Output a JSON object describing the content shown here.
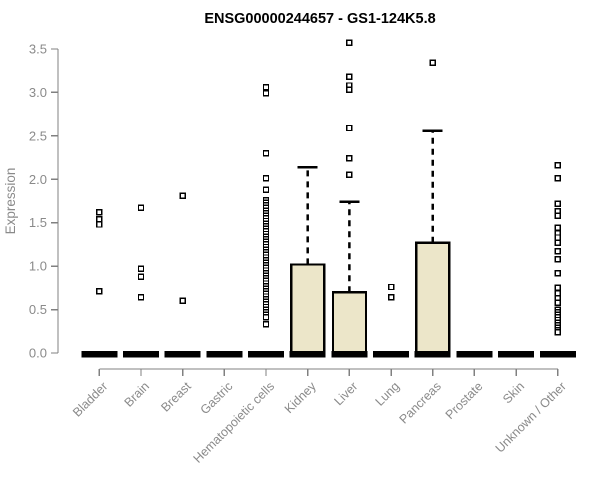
{
  "chart_data": {
    "type": "boxplot",
    "title": "ENSG00000244657 - GS1-124K5.8",
    "ylabel": "Expression",
    "xlabel": "",
    "ylim": [
      0.0,
      3.5
    ],
    "ytick_labels": [
      "0.0",
      "0.5",
      "1.0",
      "1.5",
      "2.0",
      "2.5",
      "3.0",
      "3.5"
    ],
    "ytick_values": [
      0.0,
      0.5,
      1.0,
      1.5,
      2.0,
      2.5,
      3.0,
      3.5
    ],
    "grid": "off",
    "legend": "none",
    "categories": [
      "Bladder",
      "Brain",
      "Breast",
      "Gastric",
      "Hematopoietic cells",
      "Kidney",
      "Liver",
      "Lung",
      "Pancreas",
      "Prostate",
      "Skin",
      "Unknown / Other"
    ],
    "groups": [
      {
        "name": "Bladder",
        "median": 0,
        "q1": 0,
        "q3": 0,
        "whisker_high": 0,
        "points": [
          1.62,
          1.54,
          1.48,
          0.71
        ]
      },
      {
        "name": "Brain",
        "median": 0,
        "q1": 0,
        "q3": 0,
        "whisker_high": 0,
        "points": [
          1.67,
          0.97,
          0.88,
          0.64
        ]
      },
      {
        "name": "Breast",
        "median": 0,
        "q1": 0,
        "q3": 0,
        "whisker_high": 0,
        "points": [
          1.81,
          0.6
        ]
      },
      {
        "name": "Gastric",
        "median": 0,
        "q1": 0,
        "q3": 0,
        "whisker_high": 0,
        "points": []
      },
      {
        "name": "Hematopoietic cells",
        "median": 0,
        "q1": 0,
        "q3": 0,
        "whisker_high": 0,
        "points": [
          3.06,
          2.99,
          2.3,
          2.01,
          1.88,
          1.76,
          1.73,
          1.7,
          1.67,
          1.64,
          1.61,
          1.58,
          1.55,
          1.52,
          1.49,
          1.46,
          1.43,
          1.4,
          1.37,
          1.34,
          1.31,
          1.28,
          1.25,
          1.22,
          1.19,
          1.16,
          1.13,
          1.1,
          1.07,
          1.04,
          1.01,
          0.98,
          0.95,
          0.92,
          0.89,
          0.86,
          0.83,
          0.8,
          0.77,
          0.74,
          0.71,
          0.68,
          0.65,
          0.62,
          0.59,
          0.56,
          0.53,
          0.5,
          0.47,
          0.44,
          0.41,
          0.33
        ]
      },
      {
        "name": "Kidney",
        "median": 0,
        "q1": 0,
        "q3": 1.02,
        "whisker_high": 2.14,
        "points": []
      },
      {
        "name": "Liver",
        "median": 0,
        "q1": 0,
        "q3": 0.7,
        "whisker_high": 1.74,
        "points": [
          3.57,
          3.18,
          3.08,
          3.03,
          2.59,
          2.24,
          2.05
        ]
      },
      {
        "name": "Lung",
        "median": 0,
        "q1": 0,
        "q3": 0,
        "whisker_high": 0,
        "points": [
          0.76,
          0.64
        ]
      },
      {
        "name": "Pancreas",
        "median": 0,
        "q1": 0,
        "q3": 1.27,
        "whisker_high": 2.56,
        "points": [
          3.34
        ]
      },
      {
        "name": "Prostate",
        "median": 0,
        "q1": 0,
        "q3": 0,
        "whisker_high": 0,
        "points": []
      },
      {
        "name": "Skin",
        "median": 0,
        "q1": 0,
        "q3": 0,
        "whisker_high": 0,
        "points": []
      },
      {
        "name": "Unknown / Other",
        "median": 0,
        "q1": 0,
        "q3": 0,
        "whisker_high": 0,
        "points": [
          2.16,
          2.01,
          1.72,
          1.63,
          1.58,
          1.44,
          1.38,
          1.33,
          1.27,
          1.17,
          1.08,
          0.92,
          0.75,
          0.69,
          0.63,
          0.58,
          0.5,
          0.47,
          0.44,
          0.41,
          0.38,
          0.35,
          0.32,
          0.29,
          0.26,
          0.24
        ]
      }
    ],
    "colors": {
      "box_fill": "#ece6c9",
      "box_stroke": "#000000",
      "median_bar": "#000000",
      "point_stroke": "#000000",
      "point_fill": "#ffffff",
      "axis_line": "#808080",
      "axis_text": "#8a8a8a",
      "title_text": "#000000",
      "background": "#ffffff"
    }
  }
}
